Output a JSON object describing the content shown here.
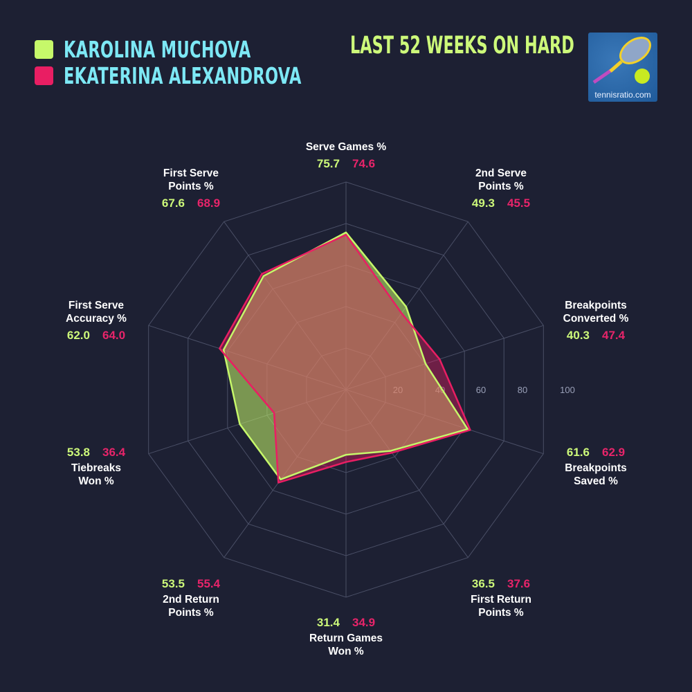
{
  "legend": [
    {
      "name": "KAROLINA MUCHOVA",
      "color": "#c6f86a"
    },
    {
      "name": "EKATERINA ALEXANDROVA",
      "color": "#e91e63"
    }
  ],
  "subtitle": "LAST 52 WEEKS ON HARD",
  "logo": {
    "text": "tennisratio.com"
  },
  "chart_data": {
    "type": "radar",
    "categories": [
      [
        "Serve Games %"
      ],
      [
        "2nd Serve",
        "Points %"
      ],
      [
        "Breakpoints",
        "Converted %"
      ],
      [
        "Breakpoints",
        "Saved %"
      ],
      [
        "First Return",
        "Points %"
      ],
      [
        "Return Games",
        "Won %"
      ],
      [
        "2nd Return",
        "Points %"
      ],
      [
        "Tiebreaks",
        "Won %"
      ],
      [
        "First Serve",
        "Accuracy %"
      ],
      [
        "First Serve",
        "Points %"
      ]
    ],
    "series": [
      {
        "name": "KAROLINA MUCHOVA",
        "color": "#c6f86a",
        "values": [
          75.7,
          49.3,
          40.3,
          61.6,
          36.5,
          31.4,
          53.5,
          53.8,
          62.0,
          67.6
        ],
        "labels": [
          "75.7",
          "49.3",
          "40.3",
          "61.6",
          "36.5",
          "31.4",
          "53.5",
          "53.8",
          "62.0",
          "67.6"
        ]
      },
      {
        "name": "EKATERINA ALEXANDROVA",
        "color": "#e91e63",
        "values": [
          74.6,
          45.5,
          47.4,
          62.9,
          37.6,
          34.9,
          55.4,
          36.4,
          64.0,
          68.9
        ],
        "labels": [
          "74.6",
          "45.5",
          "47.4",
          "62.9",
          "37.6",
          "34.9",
          "55.4",
          "36.4",
          "64.0",
          "68.9"
        ]
      }
    ],
    "rlim": [
      0,
      100
    ],
    "ticks": [
      "20",
      "40",
      "60",
      "80",
      "100"
    ],
    "grid": true,
    "legend_position": "top-left"
  }
}
